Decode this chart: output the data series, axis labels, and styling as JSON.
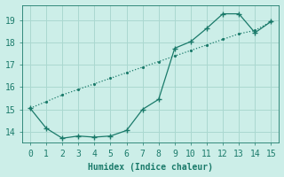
{
  "xlabel": "Humidex (Indice chaleur)",
  "background_color": "#cceee8",
  "grid_color": "#aad8d0",
  "line_color": "#1a7a6a",
  "xlim": [
    -0.5,
    15.5
  ],
  "ylim": [
    13.5,
    19.7
  ],
  "xticks": [
    0,
    1,
    2,
    3,
    4,
    5,
    6,
    7,
    8,
    9,
    10,
    11,
    12,
    13,
    14,
    15
  ],
  "yticks": [
    14,
    15,
    16,
    17,
    18,
    19
  ],
  "line1_x": [
    0,
    1,
    2,
    3,
    4,
    5,
    6,
    7,
    8,
    9,
    10,
    11,
    12,
    13,
    14,
    15
  ],
  "line1_y": [
    15.05,
    14.15,
    13.7,
    13.8,
    13.75,
    13.8,
    14.05,
    15.0,
    15.45,
    17.75,
    18.05,
    18.65,
    19.3,
    19.3,
    18.45,
    18.95
  ],
  "line2_x": [
    0,
    1,
    2,
    3,
    4,
    5,
    6,
    7,
    8,
    9,
    10,
    11,
    12,
    13,
    14,
    15
  ],
  "line2_y": [
    15.05,
    15.35,
    15.65,
    15.9,
    16.15,
    16.4,
    16.65,
    16.9,
    17.15,
    17.4,
    17.65,
    17.9,
    18.15,
    18.4,
    18.55,
    18.95
  ],
  "font_color": "#1a7a6a",
  "tick_fontsize": 7,
  "xlabel_fontsize": 7
}
